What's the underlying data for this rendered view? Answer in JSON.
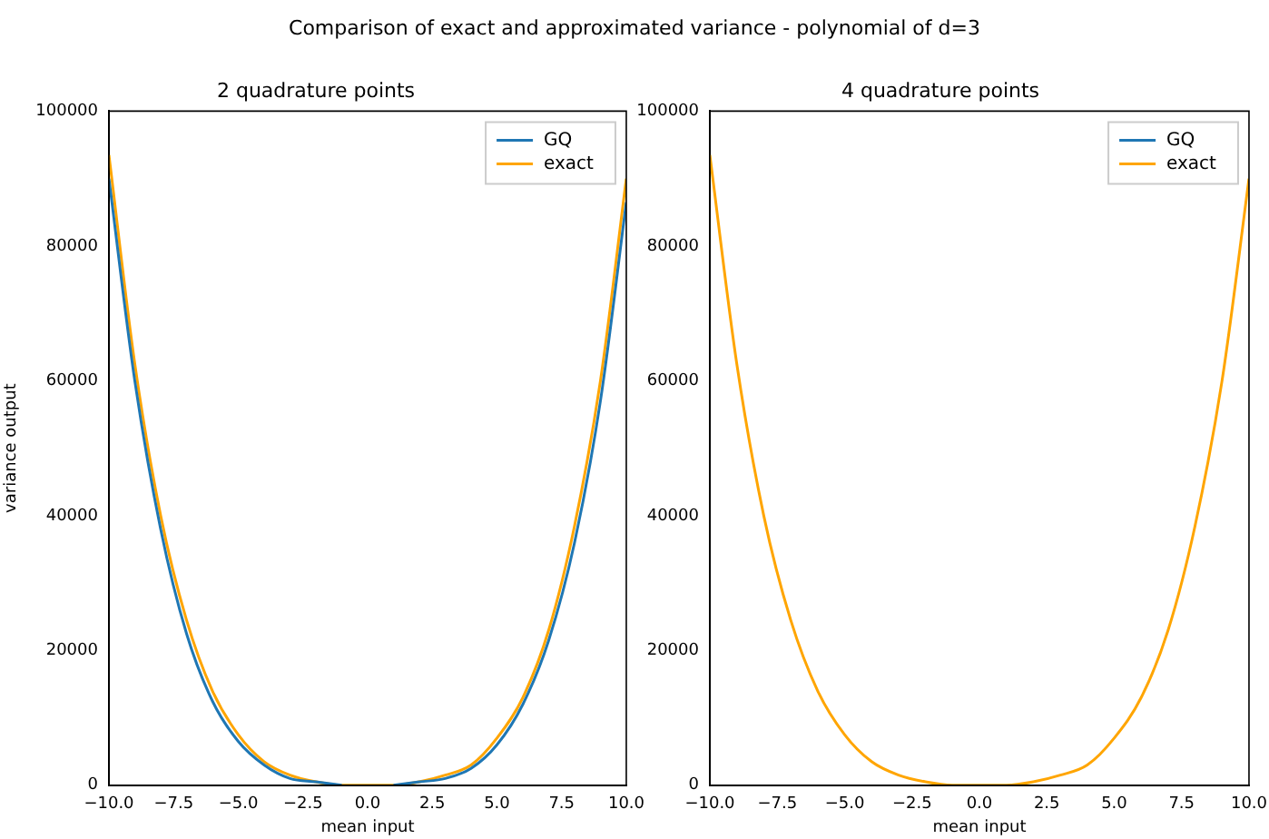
{
  "chart_data": [
    {
      "type": "line",
      "title": "2 quadrature points",
      "xlabel": "mean input",
      "ylabel": "variance output",
      "annotations": [
        "Comparison of exact and approximated variance - polynomial of d=3"
      ],
      "x": [
        -10,
        -9,
        -8,
        -7,
        -6,
        -5,
        -4,
        -3,
        -2,
        -1,
        0,
        1,
        2,
        3,
        4,
        5,
        6,
        7,
        8,
        9,
        10
      ],
      "series": [
        {
          "name": "GQ",
          "color": "#1f77b4",
          "values": [
            90000,
            60000,
            38000,
            22500,
            12500,
            6500,
            3000,
            1000,
            500,
            0,
            null,
            0,
            500,
            1000,
            2500,
            6000,
            12000,
            21500,
            36000,
            57000,
            86500
          ]
        },
        {
          "name": "exact",
          "color": "#ffa500",
          "values": [
            93500,
            62500,
            40000,
            24500,
            14000,
            7500,
            3500,
            1500,
            500,
            0,
            0,
            0,
            500,
            1500,
            3000,
            7000,
            13000,
            23000,
            38500,
            60000,
            90000
          ]
        }
      ],
      "xlim": [
        -10,
        10
      ],
      "xticks": [
        {
          "value": -10,
          "label": "−10.0"
        },
        {
          "value": -7.5,
          "label": "−7.5"
        },
        {
          "value": -5,
          "label": "−5.0"
        },
        {
          "value": -2.5,
          "label": "−2.5"
        },
        {
          "value": 0,
          "label": "0.0"
        },
        {
          "value": 2.5,
          "label": "2.5"
        },
        {
          "value": 5,
          "label": "5.0"
        },
        {
          "value": 7.5,
          "label": "7.5"
        },
        {
          "value": 10,
          "label": "10.0"
        }
      ],
      "ylim": [
        0,
        100000
      ],
      "yticks": [
        0,
        20000,
        40000,
        60000,
        80000,
        100000
      ],
      "grid": false,
      "legend": "top right",
      "marker": "none",
      "line_style": "solid"
    },
    {
      "type": "line",
      "title": "4 quadrature points",
      "xlabel": "mean input",
      "x": [
        -10,
        -9,
        -8,
        -7,
        -6,
        -5,
        -4,
        -3,
        -2,
        -1,
        0,
        1,
        2,
        3,
        4,
        5,
        6,
        7,
        8,
        9,
        10
      ],
      "series": [
        {
          "name": "GQ",
          "color": "#1f77b4",
          "values": [
            null,
            null,
            null,
            null,
            null,
            null,
            null,
            null,
            null,
            null,
            null,
            null,
            null,
            null,
            null,
            null,
            null,
            null,
            null,
            null,
            null
          ]
        },
        {
          "name": "exact",
          "color": "#ffa500",
          "values": [
            93500,
            62500,
            40000,
            24500,
            14000,
            7500,
            3500,
            1500,
            500,
            0,
            0,
            0,
            500,
            1500,
            3000,
            7000,
            13000,
            23000,
            38500,
            60000,
            90000
          ]
        }
      ],
      "xlim": [
        -10,
        10
      ],
      "xticks": [
        {
          "value": -10,
          "label": "−10.0"
        },
        {
          "value": -7.5,
          "label": "−7.5"
        },
        {
          "value": -5,
          "label": "−5.0"
        },
        {
          "value": -2.5,
          "label": "−2.5"
        },
        {
          "value": 0,
          "label": "0.0"
        },
        {
          "value": 2.5,
          "label": "2.5"
        },
        {
          "value": 5,
          "label": "5.0"
        },
        {
          "value": 7.5,
          "label": "7.5"
        },
        {
          "value": 10,
          "label": "10.0"
        }
      ],
      "ylim": [
        0,
        100000
      ],
      "yticks": [
        0,
        20000,
        40000,
        60000,
        80000,
        100000
      ],
      "grid": false,
      "legend": "top right",
      "marker": "none",
      "line_style": "solid"
    }
  ]
}
